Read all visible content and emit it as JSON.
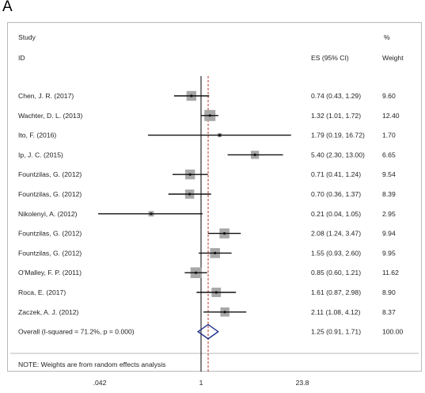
{
  "panel_label": "A",
  "header": {
    "study_line1": "Study",
    "study_line2": "ID",
    "es_label": "ES (95% CI)",
    "weight_line1": "%",
    "weight_line2": "Weight"
  },
  "note": "NOTE: Weights are from random effects analysis",
  "axis_ticks": [
    ".042",
    "1",
    "23.8"
  ],
  "colors": {
    "ci_line": "#111111",
    "weight_box": "#a8a8a8",
    "null_line": "#000000",
    "overall_line": "#c0392b",
    "diamond": "#1f2f8a",
    "frame": "#b9b9b9"
  },
  "chart_data": {
    "type": "forest",
    "scale": "log",
    "xlim": [
      0.042,
      23.8
    ],
    "null_value": 1,
    "studies": [
      {
        "label": "Chen, J. R. (2017)",
        "es": 0.74,
        "lo": 0.43,
        "hi": 1.29,
        "ci_text": "0.74 (0.43, 1.29)",
        "weight": 9.6,
        "weight_text": "9.60"
      },
      {
        "label": "Wachter, D. L. (2013)",
        "es": 1.32,
        "lo": 1.01,
        "hi": 1.72,
        "ci_text": "1.32 (1.01, 1.72)",
        "weight": 12.4,
        "weight_text": "12.40"
      },
      {
        "label": "Ito, F. (2016)",
        "es": 1.79,
        "lo": 0.19,
        "hi": 16.72,
        "ci_text": "1.79 (0.19, 16.72)",
        "weight": 1.7,
        "weight_text": "1.70"
      },
      {
        "label": "Ip, J. C. (2015)",
        "es": 5.4,
        "lo": 2.3,
        "hi": 13.0,
        "ci_text": "5.40 (2.30, 13.00)",
        "weight": 6.65,
        "weight_text": "6.65"
      },
      {
        "label": "Fountzilas, G. (2012)",
        "es": 0.71,
        "lo": 0.41,
        "hi": 1.24,
        "ci_text": "0.71 (0.41, 1.24)",
        "weight": 9.54,
        "weight_text": "9.54"
      },
      {
        "label": "Fountzilas, G. (2012)",
        "es": 0.7,
        "lo": 0.36,
        "hi": 1.37,
        "ci_text": "0.70 (0.36, 1.37)",
        "weight": 8.39,
        "weight_text": "8.39"
      },
      {
        "label": "Nikolenyi, A. (2012)",
        "es": 0.21,
        "lo": 0.04,
        "hi": 1.05,
        "ci_text": "0.21 (0.04, 1.05)",
        "weight": 2.95,
        "weight_text": "2.95"
      },
      {
        "label": "Fountzilas, G. (2012)",
        "es": 2.08,
        "lo": 1.24,
        "hi": 3.47,
        "ci_text": "2.08 (1.24, 3.47)",
        "weight": 9.94,
        "weight_text": "9.94"
      },
      {
        "label": "Fountzilas, G. (2012)",
        "es": 1.55,
        "lo": 0.93,
        "hi": 2.6,
        "ci_text": "1.55 (0.93, 2.60)",
        "weight": 9.95,
        "weight_text": "9.95"
      },
      {
        "label": "O'Malley, F. P. (2011)",
        "es": 0.85,
        "lo": 0.6,
        "hi": 1.21,
        "ci_text": "0.85 (0.60, 1.21)",
        "weight": 11.62,
        "weight_text": "11.62"
      },
      {
        "label": "Roca, E. (2017)",
        "es": 1.61,
        "lo": 0.87,
        "hi": 2.98,
        "ci_text": "1.61 (0.87, 2.98)",
        "weight": 8.9,
        "weight_text": "8.90"
      },
      {
        "label": "Zaczek, A. J. (2012)",
        "es": 2.11,
        "lo": 1.08,
        "hi": 4.12,
        "ci_text": "2.11 (1.08, 4.12)",
        "weight": 8.37,
        "weight_text": "8.37"
      }
    ],
    "overall": {
      "label": "Overall  (I-squared = 71.2%, p = 0.000)",
      "es": 1.25,
      "lo": 0.91,
      "hi": 1.71,
      "ci_text": "1.25 (0.91, 1.71)",
      "weight": 100.0,
      "weight_text": "100.00"
    }
  }
}
